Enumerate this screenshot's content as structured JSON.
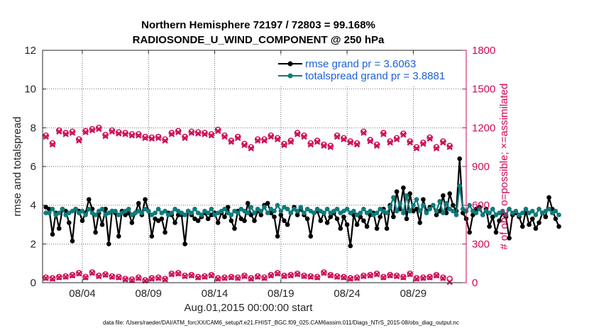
{
  "chart_data": {
    "type": "line",
    "title": "Northern Hemisphere 72197 / 72803 = 99.168%",
    "subtitle": "RADIOSONDE_U_WIND_COMPONENT @ 250 hPa",
    "xlabel": "Aug.01,2015 00:00:00 start",
    "ylabel": "rmse and totalspread",
    "ylabel_right": "# of obs: o=possible; ×=assimilated",
    "footnote": "data file: /Users/raeder/DAI/ATM_forcXX/CAM6_setup/f.e21.FHIST_BGC.f09_025.CAM6assim.011/Diags_NTrS_2015-08/obs_diag_output.nc",
    "xlim": [
      1,
      33
    ],
    "ylim": [
      0,
      12
    ],
    "ylim_right": [
      0,
      1800
    ],
    "grid": true,
    "legend_position": "top-right",
    "x_ticks": [
      {
        "value": 4,
        "label": "08/04"
      },
      {
        "value": 9,
        "label": "08/09"
      },
      {
        "value": 14,
        "label": "08/14"
      },
      {
        "value": 19,
        "label": "08/19"
      },
      {
        "value": 24,
        "label": "08/24"
      },
      {
        "value": 29,
        "label": "08/29"
      }
    ],
    "y_ticks": [
      "0",
      "2",
      "4",
      "6",
      "8",
      "10",
      "12"
    ],
    "y_ticks_right": [
      "0",
      "300",
      "600",
      "900",
      "1200",
      "1500",
      "1800"
    ],
    "series": [
      {
        "name": "rmse grand pr = 3.6063",
        "color": "#000000",
        "axis": "left",
        "x_start": 1.25,
        "x_step": 0.25,
        "values": [
          3.9,
          3.8,
          2.5,
          3.6,
          2.8,
          3.8,
          3.7,
          3.1,
          2.15,
          3.8,
          3.7,
          3.2,
          3.6,
          4.3,
          3.8,
          2.6,
          3.6,
          3.0,
          3.8,
          2.0,
          3.7,
          3.6,
          2.4,
          3.7,
          3.5,
          3.6,
          3.1,
          3.6,
          4.1,
          3.5,
          4.3,
          3.7,
          2.4,
          3.3,
          3.2,
          3.3,
          2.6,
          3.6,
          3.5,
          3.1,
          3.5,
          3.5,
          2.0,
          3.7,
          3.5,
          3.3,
          3.2,
          3.4,
          3.6,
          3.3,
          3.5,
          3.6,
          3.1,
          3.6,
          3.4,
          3.9,
          3.2,
          2.8,
          3.7,
          3.3,
          3.2,
          4.1,
          3.5,
          3.2,
          3.7,
          3.5,
          4.0,
          4.1,
          3.6,
          3.4,
          2.4,
          3.5,
          3.2,
          3.0,
          3.6,
          3.9,
          3.5,
          3.8,
          3.5,
          3.3,
          2.4,
          3.6,
          3.7,
          3.2,
          3.6,
          3.1,
          3.4,
          3.6,
          3.3,
          2.8,
          3.4,
          3.0,
          1.9,
          3.5,
          3.0,
          3.4,
          3.2,
          2.9,
          3.5,
          3.6,
          2.8,
          3.4,
          3.8,
          2.8,
          4.0,
          3.4,
          4.7,
          3.8,
          4.9,
          3.3,
          4.6,
          3.7,
          3.8,
          3.1,
          4.3,
          3.7,
          3.9,
          4.0,
          3.5,
          3.7,
          4.5,
          3.6,
          4.6,
          4.0,
          3.7,
          6.4,
          3.6,
          3.3,
          2.6,
          3.5,
          3.8,
          3.9,
          3.5,
          3.8,
          2.9,
          3.4,
          2.6,
          3.2,
          3.6,
          3.4,
          2.3,
          3.5,
          3.6,
          3.4,
          2.9,
          3.7,
          3.0,
          3.3,
          2.8,
          3.1,
          3.6,
          3.4,
          4.4,
          3.8,
          3.3,
          2.9
        ]
      },
      {
        "name": "totalspread grand pr = 3.8881",
        "color": "#0e7b7b",
        "axis": "left",
        "x_start": 1.25,
        "x_step": 0.25,
        "values": [
          3.6,
          3.6,
          3.8,
          3.5,
          3.6,
          3.8,
          3.5,
          3.6,
          3.7,
          3.8,
          3.6,
          3.7,
          3.5,
          3.8,
          3.6,
          3.5,
          3.7,
          3.8,
          3.5,
          3.6,
          3.7,
          3.7,
          3.5,
          3.6,
          3.7,
          3.8,
          3.5,
          3.6,
          3.7,
          3.6,
          3.8,
          3.7,
          3.5,
          3.6,
          3.8,
          3.6,
          3.7,
          3.5,
          3.6,
          3.8,
          3.7,
          3.6,
          3.5,
          3.7,
          3.6,
          3.8,
          3.6,
          3.5,
          3.7,
          3.6,
          3.8,
          3.5,
          3.6,
          3.7,
          3.8,
          3.6,
          3.5,
          3.7,
          3.6,
          3.8,
          3.7,
          3.6,
          3.9,
          3.6,
          3.8,
          3.7,
          3.9,
          3.6,
          3.8,
          3.7,
          4.0,
          3.7,
          3.9,
          3.8,
          3.6,
          3.8,
          3.7,
          3.9,
          3.6,
          3.8,
          3.7,
          3.6,
          3.8,
          3.7,
          3.6,
          3.8,
          3.6,
          3.7,
          3.8,
          3.6,
          3.7,
          3.8,
          3.6,
          3.7,
          3.5,
          3.6,
          3.8,
          3.6,
          3.7,
          3.5,
          3.6,
          3.8,
          3.7,
          3.6,
          3.9,
          4.4,
          3.7,
          4.1,
          3.6,
          4.5,
          3.7,
          4.0,
          4.3,
          3.7,
          4.0,
          3.6,
          3.8,
          4.0,
          3.7,
          4.2,
          3.6,
          4.1,
          3.8,
          3.7,
          3.5,
          5.0,
          3.8,
          3.7,
          4.0,
          3.7,
          3.6,
          3.8,
          3.5,
          3.7,
          3.6,
          3.8,
          3.5,
          3.6,
          3.7,
          3.5,
          3.8,
          3.6,
          3.7,
          3.5,
          3.6,
          3.8,
          3.6,
          3.7,
          3.5,
          3.8,
          3.6,
          3.7,
          3.8,
          3.6,
          3.7,
          3.5
        ]
      },
      {
        "name": "possible",
        "color": "#cc0a55",
        "axis": "right",
        "marker": "circle",
        "x_start": 1.25,
        "x_step": 0.5,
        "values": [
          1140,
          1080,
          1180,
          1160,
          1170,
          1110,
          1175,
          1190,
          1200,
          1145,
          1180,
          1165,
          1160,
          1150,
          1150,
          1130,
          1125,
          1130,
          1110,
          1160,
          1175,
          1130,
          1170,
          1165,
          1160,
          1150,
          1185,
          1140,
          1100,
          1130,
          1075,
          1050,
          1110,
          1110,
          1140,
          1120,
          1075,
          1100,
          1160,
          1140,
          1080,
          1100,
          1070,
          1060,
          1140,
          1120,
          1095,
          1080,
          1170,
          1105,
          1070,
          1160,
          1095,
          1120,
          1155,
          1095,
          1050,
          1085,
          1125,
          1050,
          1095,
          1060
        ]
      },
      {
        "name": "assimilated",
        "color": "#cc0a55",
        "axis": "right",
        "marker": "cross",
        "x_start": 1.25,
        "x_step": 0.5,
        "values": [
          1130,
          1070,
          1170,
          1150,
          1160,
          1100,
          1165,
          1180,
          1190,
          1135,
          1170,
          1155,
          1150,
          1140,
          1140,
          1120,
          1115,
          1120,
          1100,
          1150,
          1165,
          1120,
          1160,
          1155,
          1150,
          1140,
          1175,
          1130,
          1090,
          1120,
          1065,
          1040,
          1100,
          1100,
          1130,
          1110,
          1065,
          1090,
          1150,
          1130,
          1070,
          1090,
          1060,
          1050,
          1130,
          1110,
          1085,
          1070,
          1160,
          1095,
          1060,
          1150,
          1085,
          1110,
          1145,
          1085,
          1040,
          1075,
          1115,
          1040,
          1085,
          1050
        ]
      },
      {
        "name": "possible (lower)",
        "color": "#cc0a55",
        "axis": "right",
        "marker": "circle",
        "x_start": 1.25,
        "x_step": 0.5,
        "values": [
          40,
          35,
          45,
          50,
          60,
          75,
          45,
          80,
          55,
          65,
          50,
          45,
          30,
          25,
          40,
          20,
          35,
          40,
          30,
          70,
          75,
          55,
          60,
          45,
          50,
          60,
          35,
          40,
          45,
          40,
          55,
          35,
          50,
          40,
          60,
          75,
          55,
          60,
          70,
          55,
          50,
          45,
          80,
          60,
          50,
          45,
          35,
          40,
          55,
          60,
          70,
          45,
          60,
          55,
          45,
          70,
          35,
          40,
          45,
          60,
          40,
          30
        ]
      },
      {
        "name": "assimilated (lower)",
        "color": "#cc0a55",
        "axis": "right",
        "marker": "cross",
        "x_start": 1.25,
        "x_step": 0.5,
        "values": [
          35,
          30,
          40,
          45,
          55,
          70,
          40,
          75,
          50,
          60,
          45,
          40,
          25,
          20,
          35,
          15,
          30,
          35,
          25,
          65,
          70,
          50,
          55,
          40,
          45,
          55,
          30,
          35,
          40,
          35,
          50,
          30,
          45,
          35,
          55,
          70,
          50,
          55,
          65,
          50,
          45,
          40,
          75,
          55,
          45,
          40,
          30,
          35,
          50,
          55,
          65,
          40,
          55,
          50,
          40,
          65,
          30,
          35,
          40,
          55,
          35,
          5
        ]
      }
    ]
  }
}
